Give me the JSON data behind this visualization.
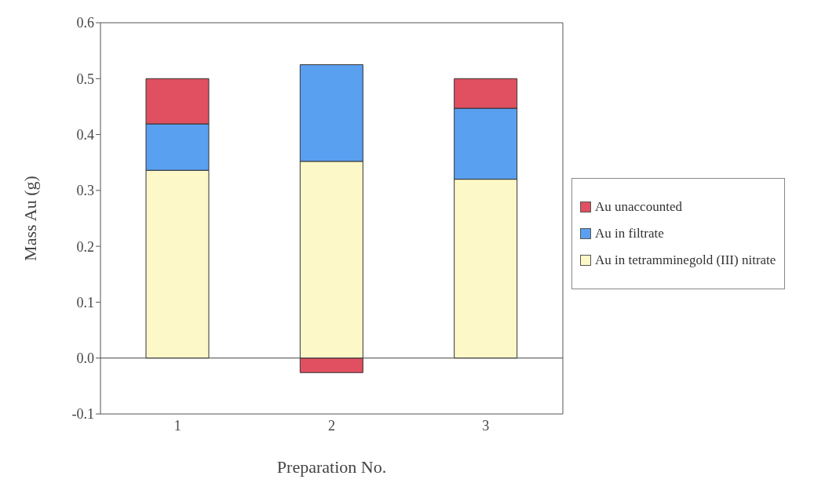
{
  "chart_data": {
    "type": "bar",
    "stacked": true,
    "xlabel": "Preparation No.",
    "ylabel": "Mass Au (g)",
    "categories": [
      "1",
      "2",
      "3"
    ],
    "series": [
      {
        "name": "Au in tetramminegold (III) nitrate",
        "color": "#fdf8c8",
        "values": [
          0.336,
          0.352,
          0.32
        ]
      },
      {
        "name": "Au in filtrate",
        "color": "#5aa0f0",
        "values": [
          0.083,
          0.173,
          0.127
        ]
      },
      {
        "name": "Au unaccounted",
        "color": "#e05060",
        "values": [
          0.081,
          -0.026,
          0.053
        ]
      }
    ],
    "ylim": [
      -0.1,
      0.6
    ],
    "yticks": [
      {
        "value": -0.1,
        "label": "-0.1"
      },
      {
        "value": 0,
        "label": "0.0"
      },
      {
        "value": 0.1,
        "label": "0.1"
      },
      {
        "value": 0.2,
        "label": "0.2"
      },
      {
        "value": 0.3,
        "label": "0.3"
      },
      {
        "value": 0.4,
        "label": "0.4"
      },
      {
        "value": 0.5,
        "label": "0.5"
      },
      {
        "value": 0.6,
        "label": "0.6"
      }
    ],
    "ref_lines": [
      {
        "axis": "y",
        "value": 0,
        "color": "#444444"
      }
    ],
    "legend": "right"
  }
}
